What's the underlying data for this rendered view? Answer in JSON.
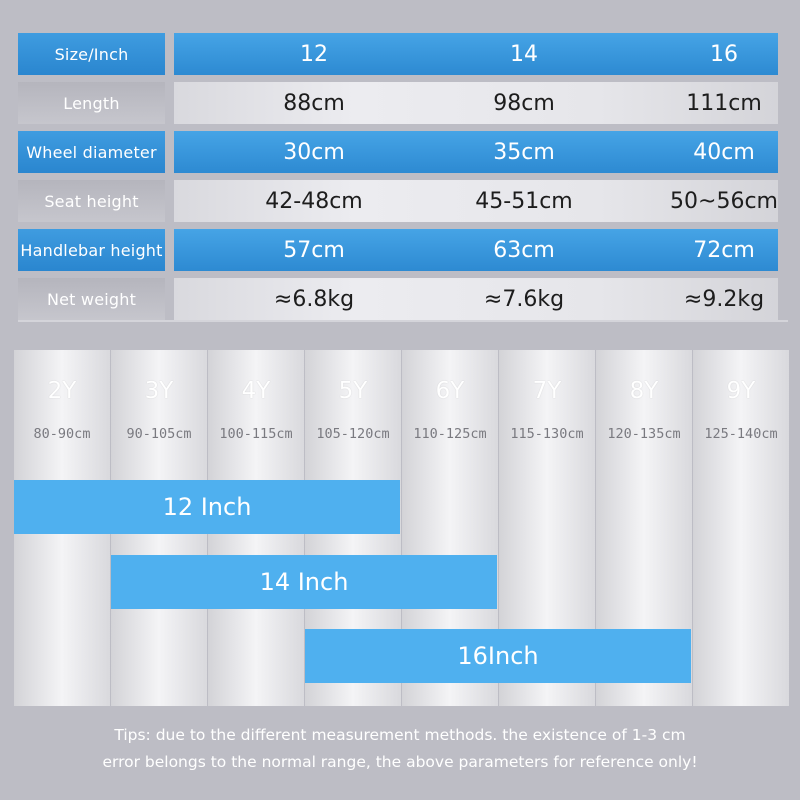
{
  "spec_table": {
    "header": {
      "label": "Size/Inch",
      "values": [
        "12",
        "14",
        "16"
      ]
    },
    "rows": [
      {
        "label": "Length",
        "values": [
          "88cm",
          "98cm",
          "111cm"
        ]
      },
      {
        "label": "Wheel diameter",
        "values": [
          "30cm",
          "35cm",
          "40cm"
        ]
      },
      {
        "label": "Seat height",
        "values": [
          "42-48cm",
          "45-51cm",
          "50~56cm"
        ]
      },
      {
        "label": "Handlebar height",
        "values": [
          "57cm",
          "63cm",
          "72cm"
        ]
      },
      {
        "label": "Net weight",
        "values": [
          "≈6.8kg",
          "≈7.6kg",
          "≈9.2kg"
        ]
      }
    ]
  },
  "age_chart": {
    "columns": [
      {
        "age": "2Y",
        "height": "80-90cm"
      },
      {
        "age": "3Y",
        "height": "90-105cm"
      },
      {
        "age": "4Y",
        "height": "100-115cm"
      },
      {
        "age": "5Y",
        "height": "105-120cm"
      },
      {
        "age": "6Y",
        "height": "110-125cm"
      },
      {
        "age": "7Y",
        "height": "115-130cm"
      },
      {
        "age": "8Y",
        "height": "120-135cm"
      },
      {
        "age": "9Y",
        "height": "125-140cm"
      }
    ],
    "bars": [
      {
        "label": "12 Inch",
        "from_age": "2Y",
        "to_age": "5Y"
      },
      {
        "label": "14 Inch",
        "from_age": "3Y",
        "to_age": "6Y"
      },
      {
        "label": "16Inch",
        "from_age": "5Y",
        "to_age": "8Y"
      }
    ]
  },
  "tips": {
    "line1": "Tips: due to the different measurement methods. the existence of 1-3 cm",
    "line2": "error belongs to the normal range, the above parameters for reference only!"
  },
  "colors": {
    "accent_blue": "#2d8ad2",
    "bar_blue": "#4fb0ef",
    "background": "#bdbdc5"
  }
}
